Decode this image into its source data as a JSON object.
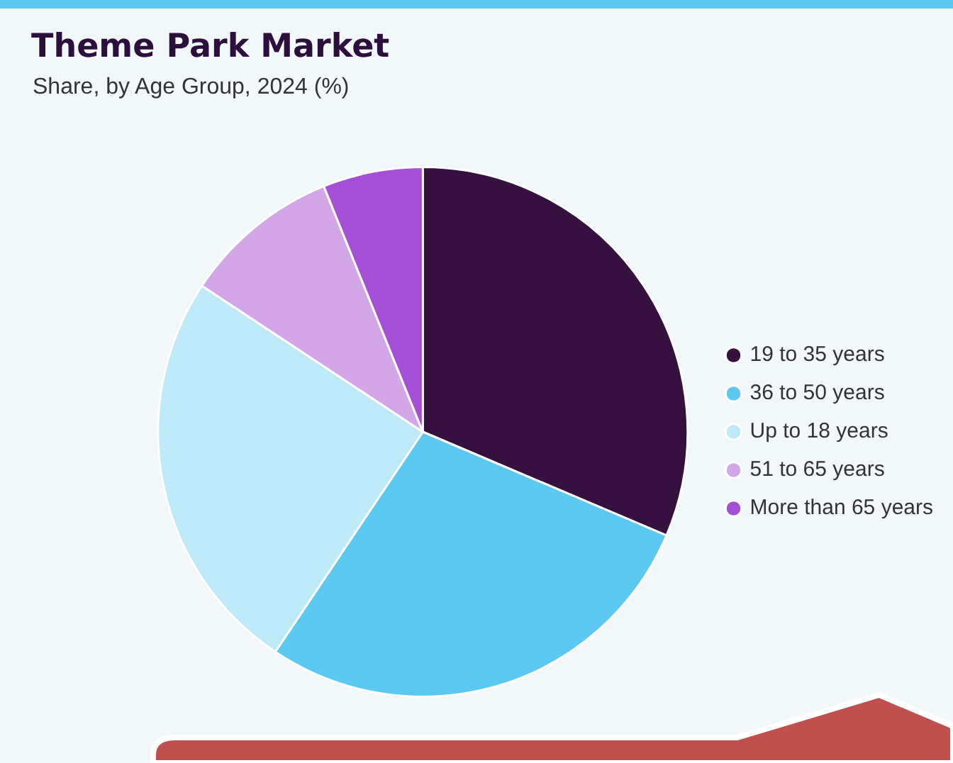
{
  "chart_data": {
    "type": "pie",
    "title": "Theme Park Market",
    "subtitle": "Share, by Age Group, 2024 (%)",
    "categories": [
      "19 to 35 years",
      "36 to 50 years",
      "Up to 18 years",
      "51 to 65 years",
      "More than 65 years"
    ],
    "values": [
      31.4,
      28.0,
      24.9,
      9.6,
      6.1
    ],
    "colors": [
      "#36103f",
      "#5bc8f2",
      "#bde9f8",
      "#d3a6e8",
      "#a44fd6"
    ],
    "legend": "right"
  }
}
